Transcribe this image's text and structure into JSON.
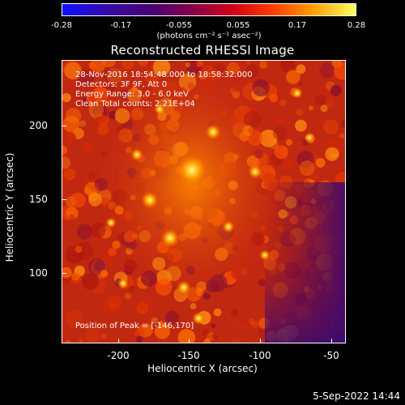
{
  "colorbar": {
    "tick_labels": [
      "-0.28",
      "-0.17",
      "-0.055",
      "0.055",
      "0.17",
      "0.28"
    ],
    "units_label": "(photons cm⁻² s⁻¹ asec⁻²)"
  },
  "plot": {
    "title": "Reconstructed RHESSI Image",
    "info_lines": [
      "28-Nov-2016 18:54:48.000 to 18:58:32.000",
      "Detectors: 3F 9F, Att 0",
      "Energy Range: 3.0 - 6.0 keV",
      "Clean     Total counts: 2.21E+04"
    ],
    "peak_label": "Position of Peak = [-146,170]",
    "xlabel": "Heliocentric X (arcsec)",
    "ylabel": "Heliocentric Y (arcsec)",
    "x_ticks": [
      "-200",
      "-150",
      "-100",
      "-50"
    ],
    "y_ticks": [
      "200",
      "150",
      "100"
    ]
  },
  "footer": {
    "date": "5-Sep-2022 14:44"
  },
  "colors": {
    "background": "#000000",
    "foreground": "#ffffff"
  }
}
